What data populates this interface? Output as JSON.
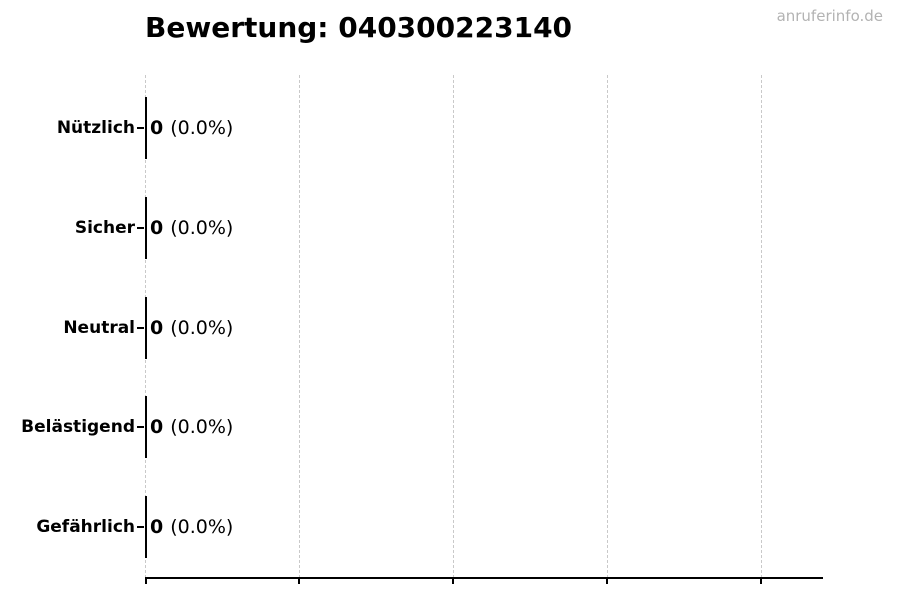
{
  "watermark": "anruferinfo.de",
  "colors": {
    "background": "#ffffff",
    "bar": "#000000",
    "axis": "#000000",
    "gridline": "#c9c9c9",
    "watermark": "#b3b3b3",
    "title": "#000000"
  },
  "chart_data": {
    "type": "bar",
    "orientation": "horizontal",
    "title": "Bewertung: 040300223140",
    "categories": [
      "Nützlich",
      "Sicher",
      "Neutral",
      "Belästigend",
      "Gefährlich"
    ],
    "values": [
      0,
      0,
      0,
      0,
      0
    ],
    "value_labels": [
      "0 (0.0%)",
      "0 (0.0%)",
      "0 (0.0%)",
      "0 (0.0%)",
      "0 (0.0%)"
    ],
    "xlabel": "",
    "ylabel": "",
    "x_tick_labels": [],
    "grid": true,
    "grid_style": "dashed-vertical",
    "legend": false
  },
  "rows": [
    {
      "label": "Nützlich",
      "value": "0",
      "percent": "(0.0%)"
    },
    {
      "label": "Sicher",
      "value": "0",
      "percent": "(0.0%)"
    },
    {
      "label": "Neutral",
      "value": "0",
      "percent": "(0.0%)"
    },
    {
      "label": "Belästigend",
      "value": "0",
      "percent": "(0.0%)"
    },
    {
      "label": "Gefährlich",
      "value": "0",
      "percent": "(0.0%)"
    }
  ]
}
